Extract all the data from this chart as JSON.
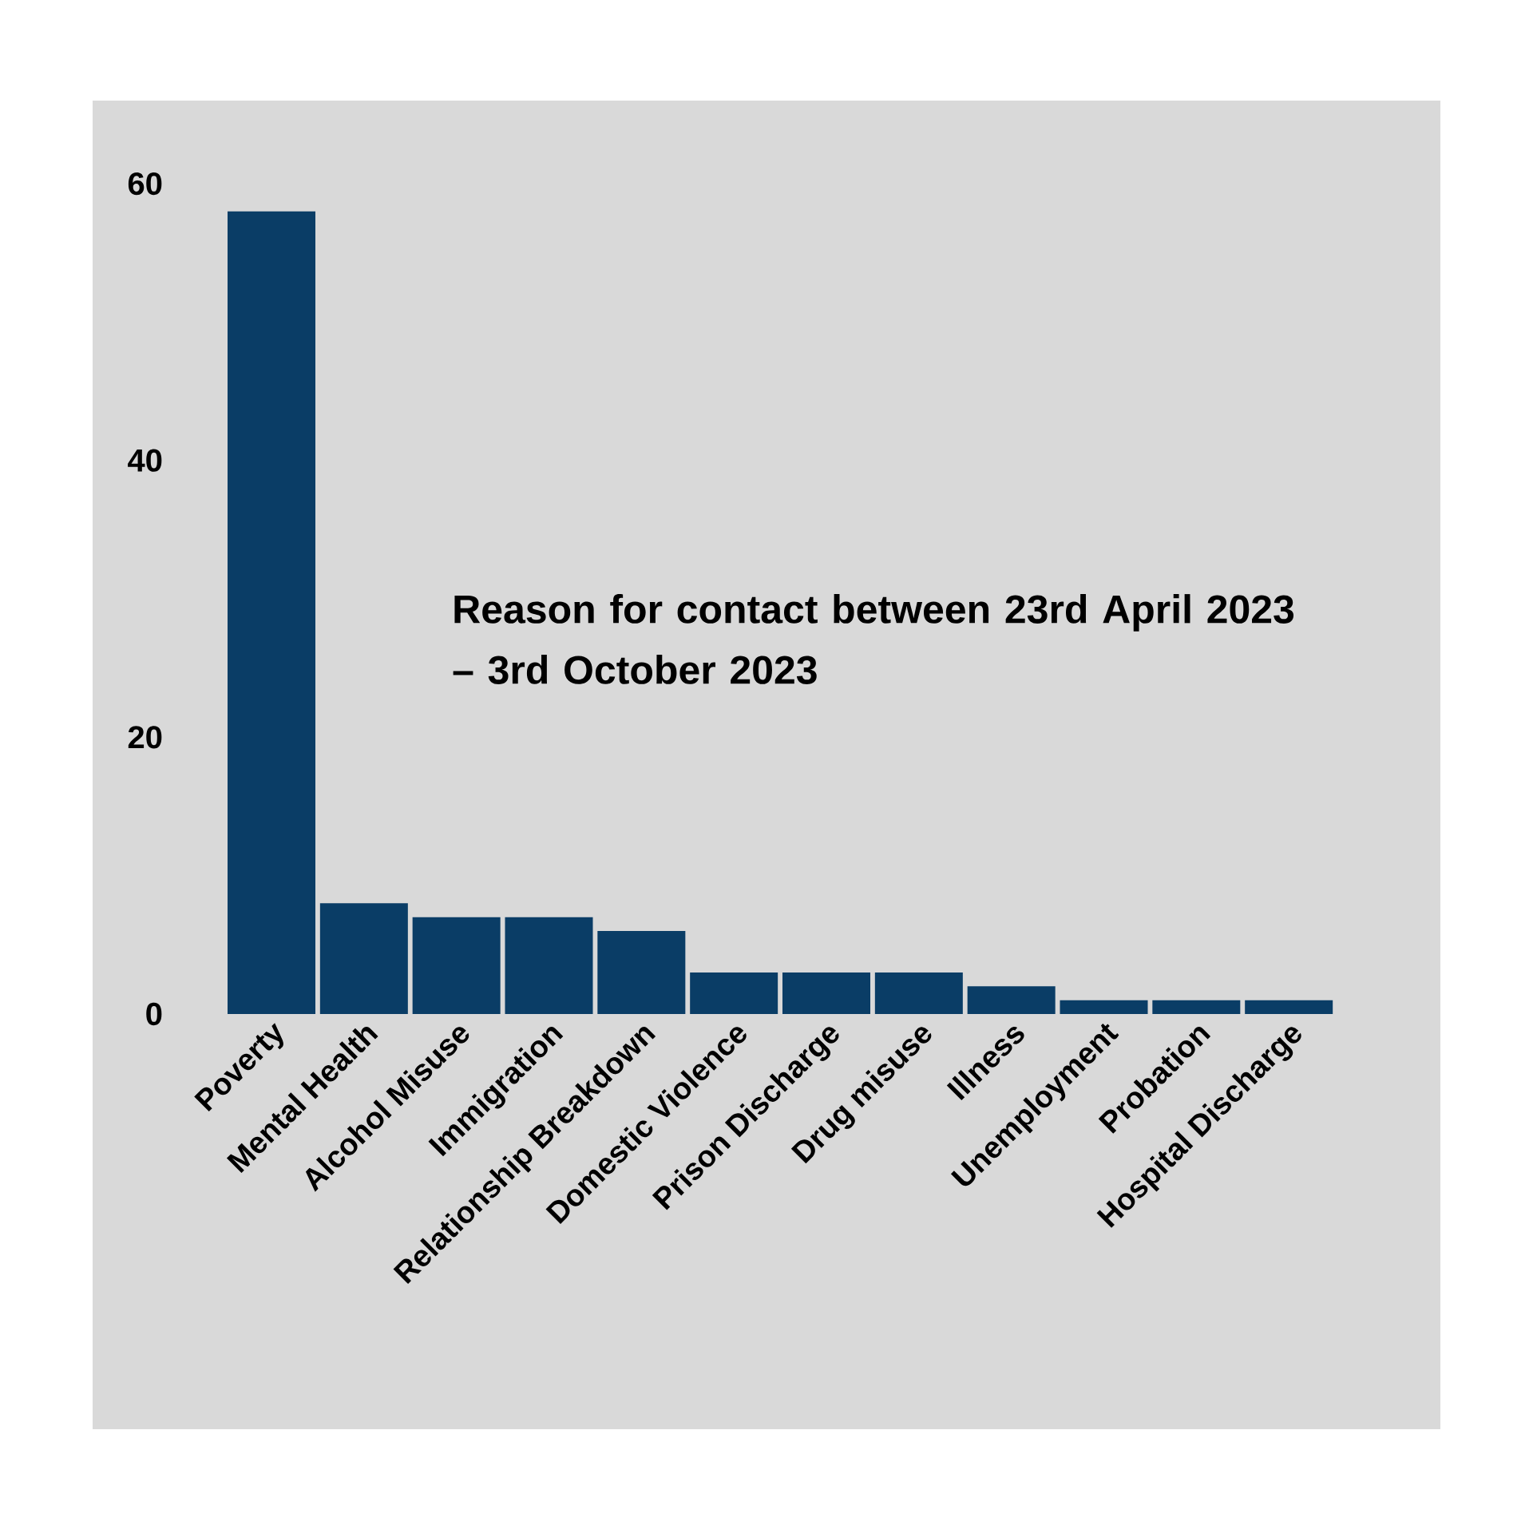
{
  "chart_data": {
    "type": "bar",
    "title": "Reason for contact between 23rd April 2023 – 3rd October 2023",
    "categories": [
      "Poverty",
      "Mental Health",
      "Alcohol Misuse",
      "Immigration",
      "Relationship Breakdown",
      "Domestic Violence",
      "Prison Discharge",
      "Drug misuse",
      "Illness",
      "Unemployment",
      "Probation",
      "Hospital Discharge"
    ],
    "values": [
      58,
      8,
      7,
      7,
      6,
      3,
      3,
      3,
      2,
      1,
      1,
      1
    ],
    "color": "#0a3d66",
    "ylim": [
      0,
      60
    ],
    "yticks": [
      0,
      20,
      40,
      60
    ],
    "grid": false
  }
}
